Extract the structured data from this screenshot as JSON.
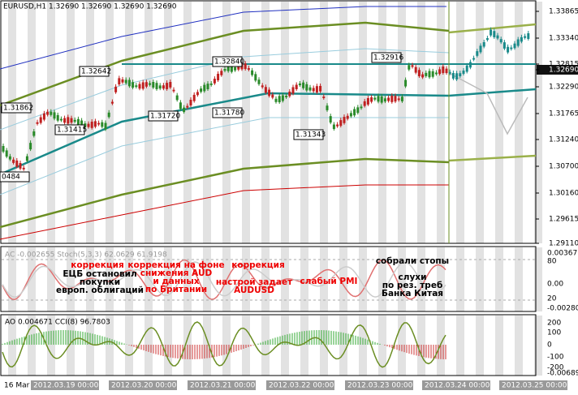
{
  "header": {
    "title": "EURUSD,H1  1.32690 1.32690 1.32690 1.32690"
  },
  "price_axis": [
    "1.33865",
    "1.33340",
    "1.32815",
    "1.32690",
    "1.32290",
    "1.31765",
    "1.31240",
    "1.30700",
    "1.30160",
    "1.29615",
    "1.29110"
  ],
  "price_tags": [
    "1.32642",
    "1.31862",
    "1.31415",
    "1.32840",
    "1.31720",
    "1.31780",
    "1.31343",
    "1.32916",
    "0484"
  ],
  "annotations": [
    {
      "lines": [
        "коррекция"
      ],
      "color": "red"
    },
    {
      "lines": [
        "ЕЦБ остановил",
        "покупки",
        "европ. облигаций"
      ],
      "color": "black"
    },
    {
      "lines": [
        "коррекция на фоне",
        "снижения AUD",
        "и данных",
        "по Британии"
      ],
      "color": "red"
    },
    {
      "lines": [
        "коррекция"
      ],
      "color": "red"
    },
    {
      "lines": [
        "настрой задает",
        "AUDUSD"
      ],
      "color": "red"
    },
    {
      "lines": [
        "слабый PMI"
      ],
      "color": "red"
    },
    {
      "lines": [
        "собрали стопы"
      ],
      "color": "black"
    },
    {
      "lines": [
        "слухи",
        "по рез. треб",
        "Банка Китая"
      ],
      "color": "black"
    }
  ],
  "stoch_panel": {
    "title": "AC -0.002655 Stoch(5,3,3) 62.0629 61.9198",
    "axis": [
      "0.003677",
      "80",
      "0.00",
      "20",
      "-0.002800"
    ]
  },
  "cci_panel": {
    "title": "AO 0.004671 CCI(8) 96.7803",
    "axis": [
      "200",
      "100",
      "0",
      "-100",
      "-200",
      "-0.006891"
    ]
  },
  "time_axis": [
    "16 Mar",
    "2012.03.19 00:00",
    "2012.03.20 00:00",
    "2012.03.21 00:00",
    "2012.03.22 00:00",
    "2012.03.23 00:00",
    "2012.03.24 00:00",
    "2012.03.25 00:00"
  ]
}
